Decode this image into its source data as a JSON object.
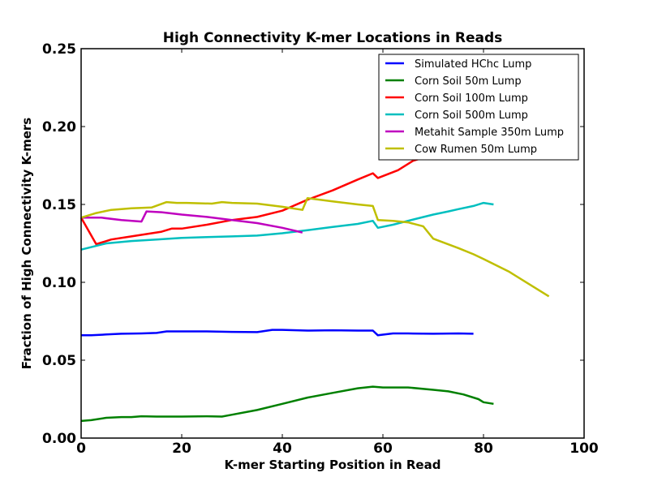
{
  "chart_data": {
    "type": "line",
    "title": "High Connectivity K-mer Locations in Reads",
    "xlabel": "K-mer Starting Position in Read",
    "ylabel": "Fraction of High Connectivity K-mers",
    "xlim": [
      0,
      100
    ],
    "ylim": [
      0,
      0.25
    ],
    "xticks": [
      "0",
      "20",
      "40",
      "60",
      "80",
      "100"
    ],
    "yticks": [
      "0.00",
      "0.05",
      "0.10",
      "0.15",
      "0.20",
      "0.25"
    ],
    "grid": false,
    "legend_position": "upper-right",
    "series": [
      {
        "name": "Simulated HChc Lump",
        "color": "#0000ff",
        "x": [
          0,
          2,
          5,
          8,
          12,
          15,
          17,
          20,
          25,
          30,
          35,
          38,
          40,
          45,
          50,
          55,
          58,
          59,
          62,
          65,
          70,
          75,
          78
        ],
        "y": [
          0.066,
          0.066,
          0.0665,
          0.067,
          0.0672,
          0.0675,
          0.0685,
          0.0685,
          0.0685,
          0.0682,
          0.068,
          0.0695,
          0.0695,
          0.069,
          0.0692,
          0.069,
          0.069,
          0.066,
          0.0672,
          0.0672,
          0.067,
          0.0672,
          0.067
        ]
      },
      {
        "name": "Corn Soil 50m Lump",
        "color": "#008000",
        "x": [
          0,
          2,
          5,
          8,
          10,
          12,
          15,
          20,
          25,
          28,
          30,
          35,
          40,
          45,
          50,
          55,
          58,
          60,
          65,
          70,
          73,
          76,
          79,
          80,
          82
        ],
        "y": [
          0.011,
          0.0115,
          0.013,
          0.0135,
          0.0135,
          0.014,
          0.0138,
          0.0138,
          0.014,
          0.0138,
          0.015,
          0.018,
          0.022,
          0.026,
          0.029,
          0.032,
          0.033,
          0.0325,
          0.0325,
          0.031,
          0.03,
          0.028,
          0.025,
          0.023,
          0.022
        ]
      },
      {
        "name": "Corn Soil 100m Lump",
        "color": "#ff0000",
        "x": [
          0,
          3,
          6,
          10,
          13,
          16,
          18,
          20,
          25,
          30,
          35,
          40,
          45,
          50,
          55,
          58,
          59,
          63,
          66,
          68
        ],
        "y": [
          0.1415,
          0.1245,
          0.1275,
          0.1295,
          0.131,
          0.1325,
          0.1345,
          0.1345,
          0.137,
          0.14,
          0.142,
          0.146,
          0.153,
          0.159,
          0.166,
          0.17,
          0.167,
          0.172,
          0.178,
          0.18
        ]
      },
      {
        "name": "Corn Soil 500m Lump",
        "color": "#00bfbf",
        "x": [
          0,
          5,
          10,
          15,
          20,
          25,
          30,
          35,
          40,
          45,
          50,
          55,
          58,
          59,
          62,
          65,
          70,
          73,
          75,
          78,
          80,
          82
        ],
        "y": [
          0.121,
          0.125,
          0.1265,
          0.1275,
          0.1285,
          0.129,
          0.1295,
          0.13,
          0.1315,
          0.1335,
          0.1355,
          0.1375,
          0.1395,
          0.135,
          0.137,
          0.1395,
          0.1435,
          0.1455,
          0.147,
          0.149,
          0.151,
          0.15
        ]
      },
      {
        "name": "Metahit Sample 350m Lump",
        "color": "#bf00bf",
        "x": [
          0,
          4,
          8,
          12,
          13,
          16,
          20,
          25,
          30,
          35,
          40,
          44
        ],
        "y": [
          0.1415,
          0.1415,
          0.14,
          0.139,
          0.1455,
          0.145,
          0.1435,
          0.142,
          0.14,
          0.138,
          0.135,
          0.132
        ]
      },
      {
        "name": "Cow Rumen 50m Lump",
        "color": "#bfbf00",
        "x": [
          0,
          3,
          6,
          10,
          14,
          17,
          19,
          21,
          26,
          28,
          30,
          35,
          40,
          44,
          45,
          50,
          55,
          58,
          59,
          62,
          65,
          68,
          70,
          75,
          78,
          80,
          85,
          90,
          93
        ],
        "y": [
          0.1415,
          0.1445,
          0.1465,
          0.1475,
          0.148,
          0.1515,
          0.151,
          0.151,
          0.1505,
          0.1515,
          0.151,
          0.1505,
          0.1485,
          0.1465,
          0.154,
          0.152,
          0.15,
          0.149,
          0.14,
          0.1395,
          0.1385,
          0.136,
          0.128,
          0.122,
          0.118,
          0.115,
          0.107,
          0.097,
          0.091
        ]
      }
    ]
  }
}
